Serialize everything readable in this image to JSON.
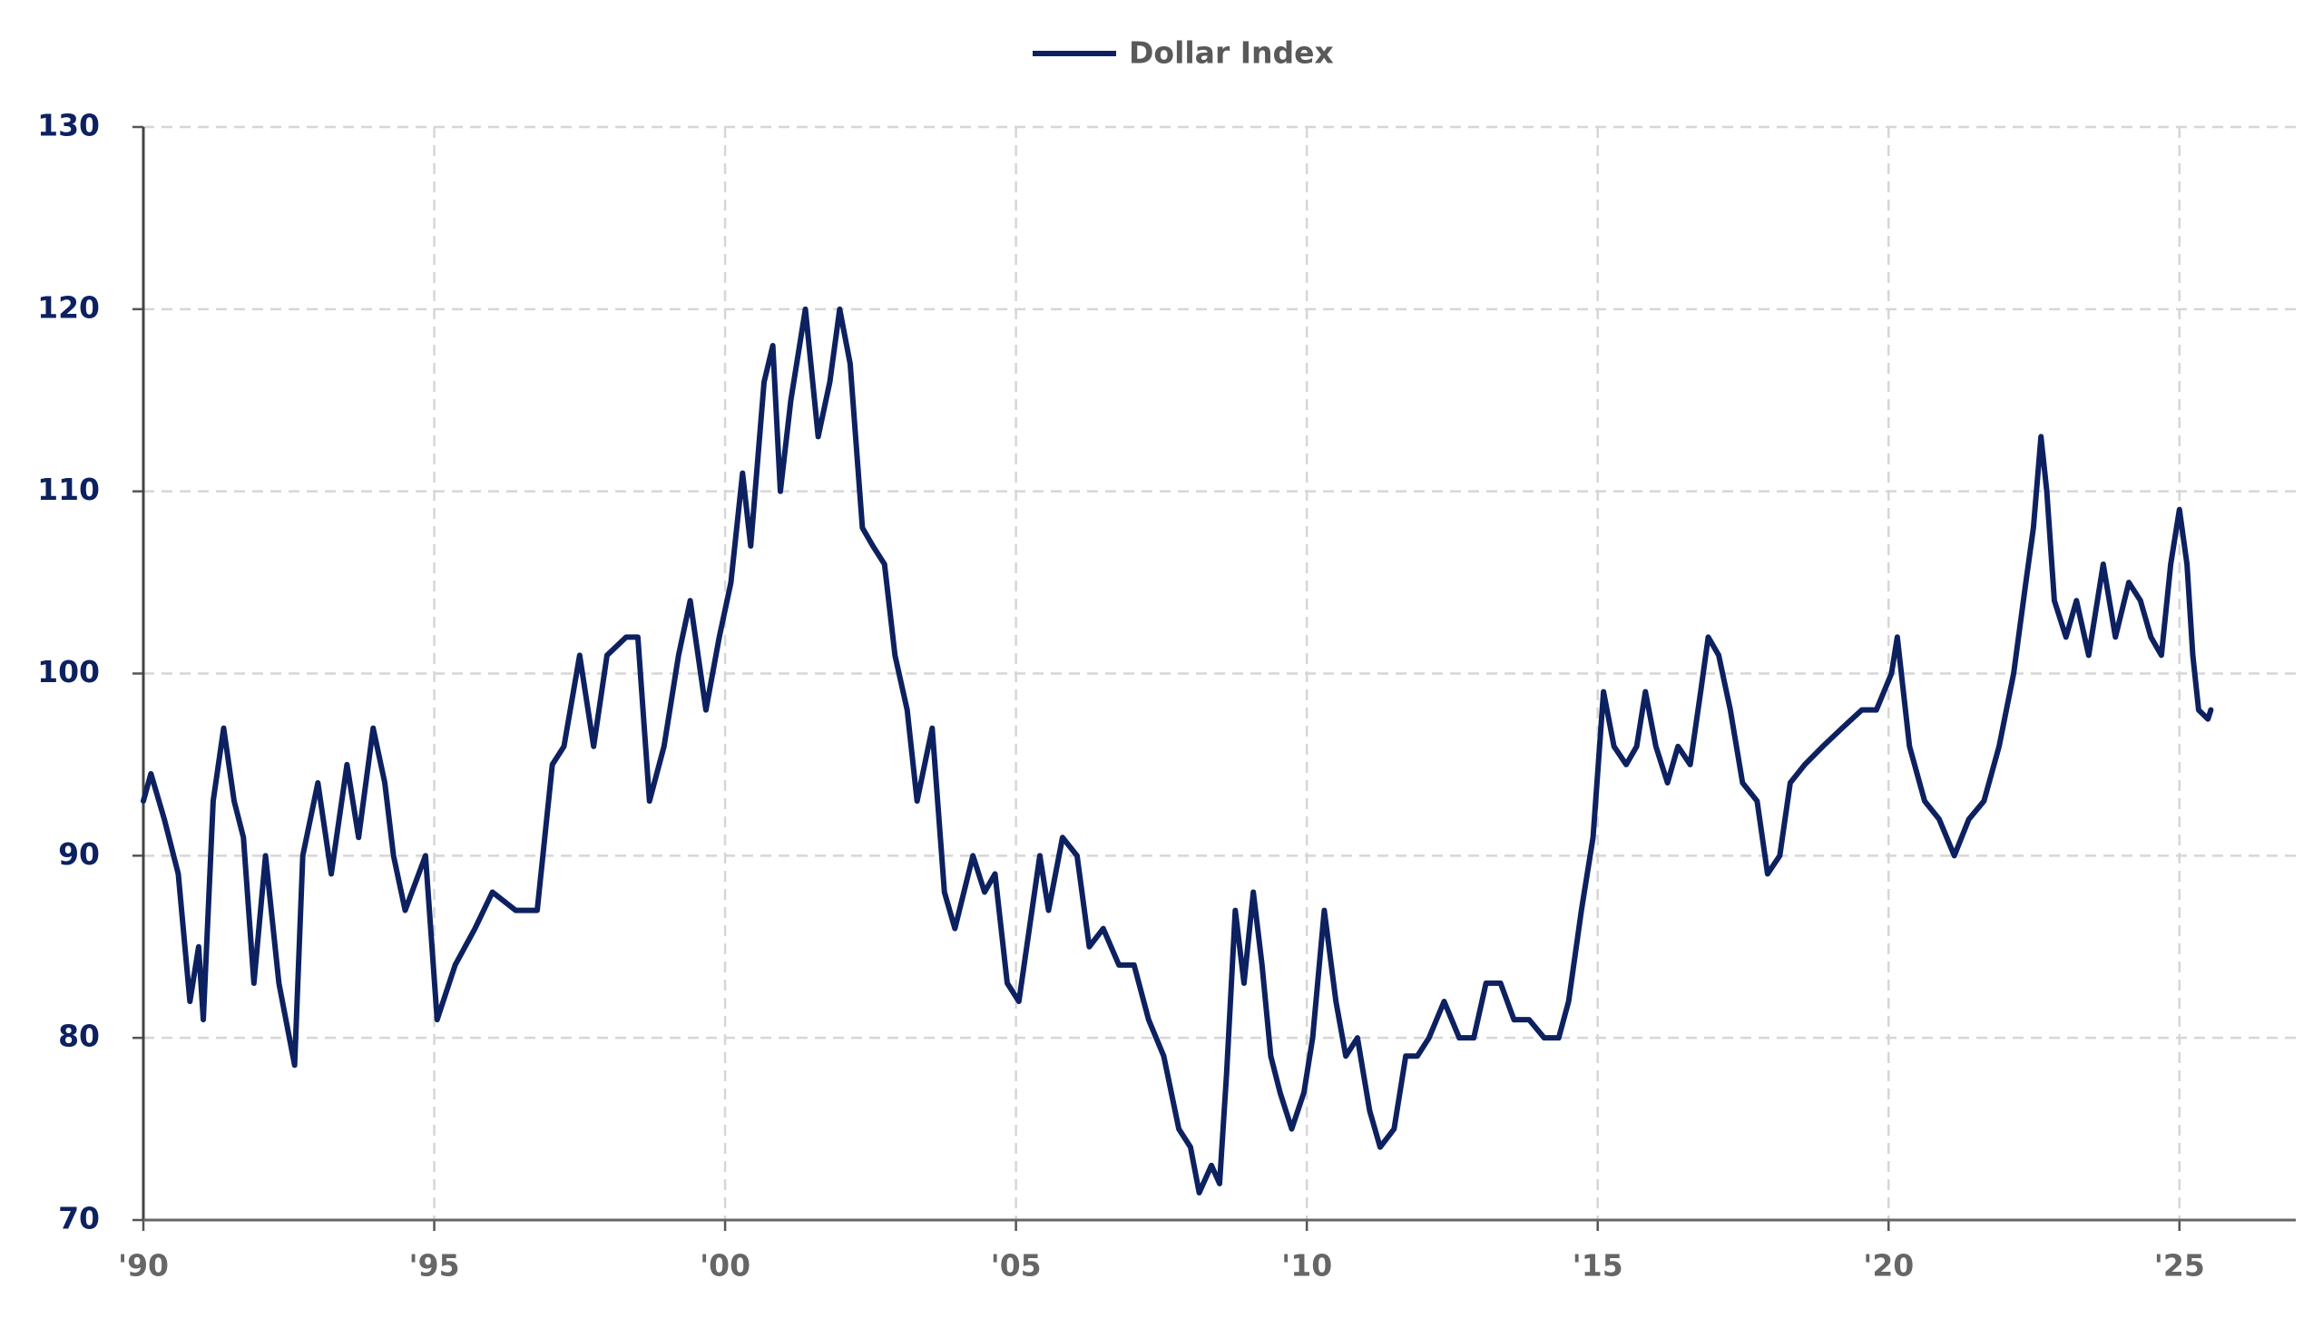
{
  "chart_data": {
    "type": "line",
    "legend": "top",
    "grid": true,
    "xlim": [
      1990,
      2027
    ],
    "ylim": [
      70,
      130
    ],
    "yticks": [
      70,
      80,
      90,
      100,
      110,
      120,
      130
    ],
    "xticks": [
      {
        "value": 1990,
        "label": "'90"
      },
      {
        "value": 1995,
        "label": "'95"
      },
      {
        "value": 2000,
        "label": "'00"
      },
      {
        "value": 2005,
        "label": "'05"
      },
      {
        "value": 2010,
        "label": "'10"
      },
      {
        "value": 2015,
        "label": "'15"
      },
      {
        "value": 2020,
        "label": "'20"
      },
      {
        "value": 2025,
        "label": "'25"
      }
    ],
    "x": [
      1990.0,
      1990.13,
      1990.36,
      1990.6,
      1990.8,
      1990.95,
      1991.03,
      1991.2,
      1991.38,
      1991.56,
      1991.72,
      1991.9,
      1992.1,
      1992.33,
      1992.6,
      1992.74,
      1993.0,
      1993.23,
      1993.5,
      1993.7,
      1993.95,
      1994.15,
      1994.3,
      1994.5,
      1994.85,
      1995.05,
      1995.36,
      1995.7,
      1996.0,
      1996.4,
      1996.77,
      1997.03,
      1997.23,
      1997.5,
      1997.74,
      1997.97,
      1998.3,
      1998.5,
      1998.7,
      1998.95,
      1999.2,
      1999.4,
      1999.67,
      1999.9,
      2000.1,
      2000.3,
      2000.44,
      2000.67,
      2000.82,
      2000.95,
      2001.13,
      2001.38,
      2001.6,
      2001.8,
      2001.97,
      2002.15,
      2002.36,
      2002.54,
      2002.74,
      2002.92,
      2003.13,
      2003.3,
      2003.56,
      2003.77,
      2003.95,
      2004.26,
      2004.46,
      2004.64,
      2004.85,
      2005.05,
      2005.23,
      2005.41,
      2005.56,
      2005.8,
      2006.05,
      2006.26,
      2006.5,
      2006.77,
      2007.03,
      2007.28,
      2007.54,
      2007.8,
      2008.0,
      2008.15,
      2008.36,
      2008.5,
      2008.62,
      2008.77,
      2008.92,
      2009.08,
      2009.23,
      2009.38,
      2009.54,
      2009.74,
      2009.95,
      2010.1,
      2010.3,
      2010.5,
      2010.67,
      2010.87,
      2011.08,
      2011.26,
      2011.5,
      2011.7,
      2011.9,
      2012.1,
      2012.36,
      2012.62,
      2012.87,
      2013.08,
      2013.33,
      2013.56,
      2013.82,
      2014.08,
      2014.33,
      2014.5,
      2014.72,
      2014.92,
      2015.1,
      2015.28,
      2015.49,
      2015.67,
      2015.82,
      2016.0,
      2016.2,
      2016.38,
      2016.59,
      2016.77,
      2016.9,
      2017.08,
      2017.28,
      2017.49,
      2017.74,
      2017.92,
      2018.13,
      2018.31,
      2018.56,
      2018.87,
      2019.2,
      2019.54,
      2019.79,
      2020.05,
      2020.15,
      2020.36,
      2020.62,
      2020.87,
      2021.13,
      2021.38,
      2021.64,
      2021.9,
      2022.15,
      2022.36,
      2022.49,
      2022.62,
      2022.72,
      2022.85,
      2023.05,
      2023.23,
      2023.44,
      2023.69,
      2023.9,
      2024.13,
      2024.33,
      2024.51,
      2024.69,
      2024.85,
      2025.0,
      2025.13,
      2025.23,
      2025.33,
      2025.49,
      2025.54
    ],
    "series": [
      {
        "name": "Dollar Index",
        "color": "#0d2161",
        "values": [
          93,
          94.5,
          92,
          89,
          82,
          85,
          81,
          93,
          97,
          93,
          91,
          83,
          90,
          83,
          78.5,
          90,
          94,
          89,
          95,
          91,
          97,
          94,
          90,
          87,
          90,
          81,
          84,
          86,
          88,
          87,
          87,
          95,
          96,
          101,
          96,
          101,
          102,
          102,
          93,
          96,
          101,
          104,
          98,
          102,
          105,
          111,
          107,
          116,
          118,
          110,
          115,
          120,
          113,
          116,
          120,
          117,
          108,
          107,
          106,
          101,
          98,
          93,
          97,
          88,
          86,
          90,
          88,
          89,
          83,
          82,
          86,
          90,
          87,
          91,
          90,
          85,
          86,
          84,
          84,
          81,
          79,
          75,
          74,
          71.5,
          73,
          72,
          78,
          87,
          83,
          88,
          84,
          79,
          77,
          75,
          77,
          80,
          87,
          82,
          79,
          80,
          76,
          74,
          75,
          79,
          79,
          80,
          82,
          80,
          80,
          83,
          83,
          81,
          81,
          80,
          80,
          82,
          87,
          91,
          99,
          96,
          95,
          96,
          99,
          96,
          94,
          96,
          95,
          99,
          102,
          101,
          98,
          94,
          93,
          89,
          90,
          94,
          95,
          96,
          97,
          98,
          98,
          100,
          102,
          96,
          93,
          92,
          90,
          92,
          93,
          96,
          100,
          105,
          108,
          113,
          110,
          104,
          102,
          104,
          101,
          106,
          102,
          105,
          104,
          102,
          101,
          106,
          109,
          106,
          101,
          98,
          97.5,
          98
        ]
      }
    ]
  }
}
